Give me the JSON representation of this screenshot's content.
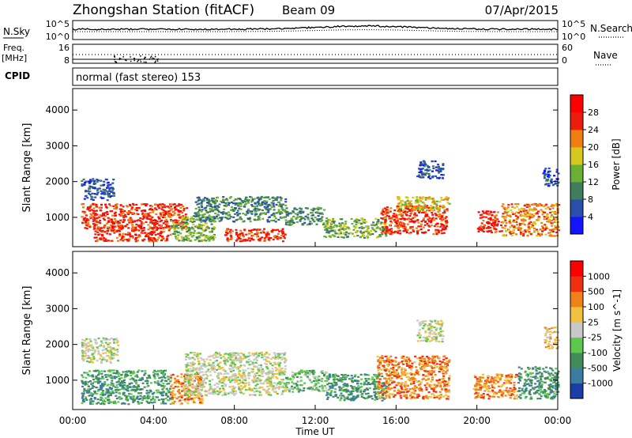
{
  "header": {
    "title": "Zhongshan Station (fitACF)",
    "beam": "Beam 09",
    "date": "07/Apr/2015"
  },
  "noise_panel": {
    "left_label": "N.Sky",
    "right_label": "N.Search",
    "left_ticks": [
      "10^5",
      "10^0"
    ],
    "right_ticks": [
      "10^5",
      "10^0"
    ]
  },
  "freq_panel": {
    "left_label_top": "Freq.",
    "left_label_bottom": "[MHz]",
    "right_label": "Nave",
    "left_ticks": [
      "16",
      "8"
    ],
    "right_ticks": [
      "60",
      "0"
    ]
  },
  "cpid_panel": {
    "label": "CPID",
    "text": "normal (fast stereo) 153"
  },
  "time_axis": {
    "label": "Time UT",
    "ticks": [
      "00:00",
      "04:00",
      "08:00",
      "12:00",
      "16:00",
      "20:00",
      "00:00"
    ]
  },
  "chart_data": [
    {
      "type": "heatmap",
      "name": "power",
      "ylabel": "Slant Range [km]",
      "ylim": [
        180,
        4600
      ],
      "yticks": [
        1000,
        2000,
        3000,
        4000
      ],
      "xlim": [
        0,
        24
      ],
      "colorbar": {
        "label": "Power [dB]",
        "tick_labels": [
          "4",
          "8",
          "12",
          "16",
          "20",
          "24",
          "28"
        ],
        "colors": [
          "#1414ff",
          "#2a4faa",
          "#3f7d5c",
          "#6ab034",
          "#d6c81c",
          "#f07e10",
          "#ee1c0c",
          "#ff0000"
        ]
      },
      "regions": [
        {
          "t": [
            0.4,
            2.0
          ],
          "r": [
            1500,
            2100
          ],
          "level": 1
        },
        {
          "t": [
            0.4,
            5.6
          ],
          "r": [
            700,
            1400
          ],
          "level": 6
        },
        {
          "t": [
            1.0,
            4.8
          ],
          "r": [
            350,
            750
          ],
          "level": 6
        },
        {
          "t": [
            4.8,
            7.0
          ],
          "r": [
            350,
            1100
          ],
          "level": 3
        },
        {
          "t": [
            6.0,
            10.5
          ],
          "r": [
            900,
            1600
          ],
          "level": 2
        },
        {
          "t": [
            7.5,
            10.5
          ],
          "r": [
            350,
            700
          ],
          "level": 6
        },
        {
          "t": [
            10.5,
            12.4
          ],
          "r": [
            800,
            1300
          ],
          "level": 2
        },
        {
          "t": [
            12.4,
            15.5
          ],
          "r": [
            450,
            1000
          ],
          "level": 3
        },
        {
          "t": [
            15.2,
            18.5
          ],
          "r": [
            550,
            1350
          ],
          "level": 6
        },
        {
          "t": [
            16.0,
            18.6
          ],
          "r": [
            1200,
            1600
          ],
          "level": 4
        },
        {
          "t": [
            17.0,
            18.3
          ],
          "r": [
            2100,
            2600
          ],
          "level": 1
        },
        {
          "t": [
            20.0,
            21.2
          ],
          "r": [
            600,
            1200
          ],
          "level": 6
        },
        {
          "t": [
            21.2,
            24.0
          ],
          "r": [
            500,
            1400
          ],
          "level": 5
        },
        {
          "t": [
            23.2,
            24.0
          ],
          "r": [
            1900,
            2400
          ],
          "level": 1
        }
      ]
    },
    {
      "type": "heatmap",
      "name": "velocity",
      "ylabel": "Slant Range [km]",
      "ylim": [
        180,
        4600
      ],
      "yticks": [
        1000,
        2000,
        3000,
        4000
      ],
      "xlim": [
        0,
        24
      ],
      "colorbar": {
        "label": "Velocity [m s^-1]",
        "tick_labels": [
          "1000",
          "500",
          "100",
          "25",
          "-25",
          "-100",
          "-500",
          "-1000"
        ],
        "colors": [
          "#1c3ca8",
          "#3c7ca0",
          "#428c5c",
          "#5cc84c",
          "#c8c8c8",
          "#f0c040",
          "#f08018",
          "#ee3010",
          "#ff0000"
        ]
      },
      "regions": [
        {
          "t": [
            0.4,
            2.2
          ],
          "r": [
            1500,
            2200
          ],
          "level": 4
        },
        {
          "t": [
            0.4,
            4.8
          ],
          "r": [
            350,
            1300
          ],
          "level": 2
        },
        {
          "t": [
            4.8,
            6.4
          ],
          "r": [
            350,
            1200
          ],
          "level": 6
        },
        {
          "t": [
            5.5,
            10.5
          ],
          "r": [
            600,
            1800
          ],
          "level": 4
        },
        {
          "t": [
            10.5,
            12.5
          ],
          "r": [
            700,
            1300
          ],
          "level": 3
        },
        {
          "t": [
            12.5,
            15.5
          ],
          "r": [
            450,
            1200
          ],
          "level": 2
        },
        {
          "t": [
            15.0,
            18.6
          ],
          "r": [
            500,
            1700
          ],
          "level": 6
        },
        {
          "t": [
            17.0,
            18.3
          ],
          "r": [
            2100,
            2700
          ],
          "level": 4
        },
        {
          "t": [
            19.8,
            22.0
          ],
          "r": [
            500,
            1200
          ],
          "level": 6
        },
        {
          "t": [
            22.0,
            24.0
          ],
          "r": [
            500,
            1400
          ],
          "level": 2
        },
        {
          "t": [
            23.3,
            24.0
          ],
          "r": [
            1900,
            2500
          ],
          "level": 5
        }
      ]
    }
  ]
}
